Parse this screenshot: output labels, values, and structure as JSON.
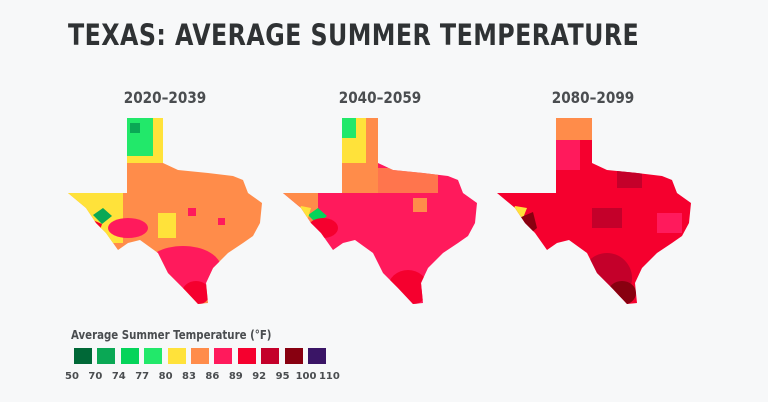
{
  "title": "TEXAS: AVERAGE SUMMER TEMPERATURE",
  "maps": [
    {
      "period": "2020–2039"
    },
    {
      "period": "2040–2059"
    },
    {
      "period": "2080–2099"
    }
  ],
  "legend": {
    "title": "Average Summer Temperature (°F)",
    "colors": [
      "#006837",
      "#0aa855",
      "#05d45a",
      "#22e86a",
      "#ffe23a",
      "#ff8c4a",
      "#ff1a5c",
      "#f5002e",
      "#c4002a",
      "#880010",
      "#3a1566"
    ],
    "labels": [
      "50",
      "70",
      "74",
      "77",
      "80",
      "83",
      "86",
      "89",
      "92",
      "95",
      "100",
      "110"
    ]
  }
}
